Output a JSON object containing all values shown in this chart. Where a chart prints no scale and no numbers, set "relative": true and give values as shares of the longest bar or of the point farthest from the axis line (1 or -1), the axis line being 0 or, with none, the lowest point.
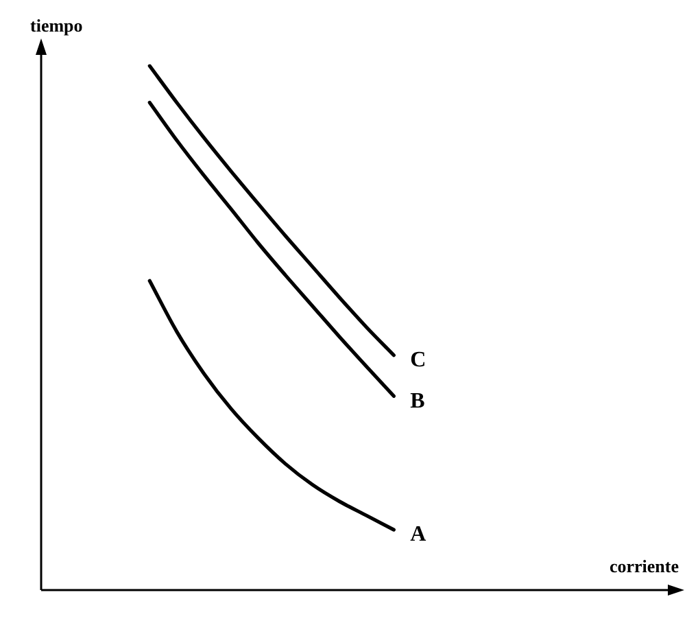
{
  "chart_data": {
    "type": "line",
    "xlabel": "corriente",
    "ylabel": "tiempo",
    "relative": true,
    "tick_labels": false,
    "marker": "none",
    "line_style": "solid",
    "categories": [
      null,
      null,
      null,
      null,
      null,
      null,
      null,
      null,
      null,
      null,
      null,
      null,
      null,
      null,
      null,
      null,
      null,
      null,
      null,
      null,
      null,
      null,
      null,
      null
    ],
    "series": [
      {
        "name": "A",
        "color": "#000000",
        "values": [
          null,
          null,
          null,
          null,
          0.59,
          0.493,
          0.413,
          0.346,
          0.29,
          0.241,
          0.201,
          0.169,
          0.142,
          0.115,
          null,
          null,
          null,
          null,
          null,
          null,
          null,
          null,
          null,
          null
        ]
      },
      {
        "name": "B",
        "color": "#000000",
        "values": [
          null,
          null,
          null,
          null,
          0.93,
          0.858,
          0.791,
          0.727,
          0.662,
          0.601,
          0.542,
          0.483,
          0.426,
          0.37,
          null,
          null,
          null,
          null,
          null,
          null,
          null,
          null,
          null,
          null
        ]
      },
      {
        "name": "C",
        "color": "#000000",
        "values": [
          null,
          null,
          null,
          null,
          1,
          0.93,
          0.863,
          0.799,
          0.737,
          0.676,
          0.617,
          0.558,
          0.501,
          0.448,
          null,
          null,
          null,
          null,
          null,
          null,
          null,
          null,
          null,
          null
        ]
      }
    ]
  }
}
